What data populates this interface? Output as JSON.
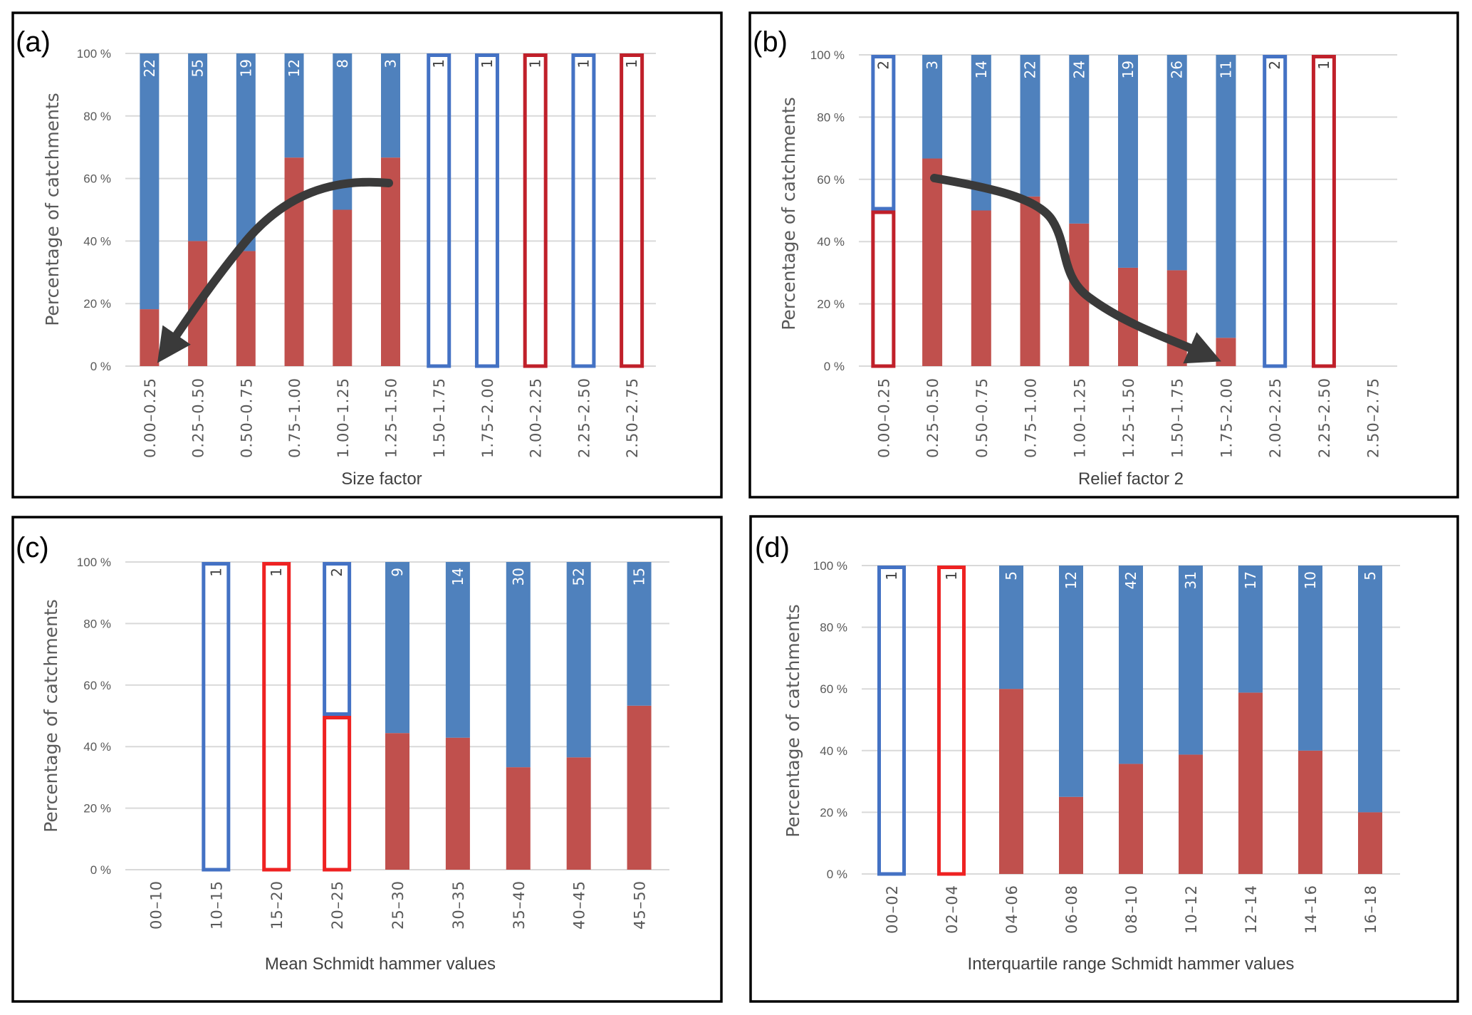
{
  "colors": {
    "upper_solid": "#4F81BD",
    "lower_solid": "#C0504D",
    "outline_blue": "#4472C4",
    "outline_red_dark": "#C0202A",
    "outline_red_bright": "#EE2222",
    "arrow": "#3A3A3A"
  },
  "chart_data": [
    {
      "panel": "(a)",
      "type": "bar",
      "stacked": true,
      "percent": true,
      "title": "",
      "xlabel": "Size factor",
      "ylabel": "Percentage of catchments",
      "ylim": [
        0,
        100
      ],
      "yticks": [
        "0 %",
        "20 %",
        "40 %",
        "60 %",
        "80 %",
        "100 %"
      ],
      "grid": true,
      "categories": [
        "0.00–0.25",
        "0.25–0.50",
        "0.50–0.75",
        "0.75–1.00",
        "1.00–1.25",
        "1.25–1.50",
        "1.50–1.75",
        "1.75–2.00",
        "2.00–2.25",
        "2.25–2.50",
        "2.50–2.75"
      ],
      "counts": [
        22,
        55,
        19,
        12,
        8,
        3,
        1,
        1,
        1,
        1,
        1
      ],
      "series": [
        {
          "name": "lower (red)",
          "values": [
            18.2,
            40.0,
            36.8,
            66.7,
            50.0,
            66.7,
            0,
            0,
            100,
            0,
            100
          ]
        },
        {
          "name": "upper (blue)",
          "values": [
            81.8,
            60.0,
            63.2,
            33.3,
            50.0,
            33.3,
            100,
            100,
            0,
            100,
            0
          ]
        }
      ],
      "outlined": [
        false,
        false,
        false,
        false,
        false,
        false,
        true,
        true,
        true,
        true,
        true
      ],
      "outline_red_style": "dark",
      "annotation": "curved arrow from 1.25–1.50 (~60%) down to 0.00–0.25 (~0%)"
    },
    {
      "panel": "(b)",
      "type": "bar",
      "stacked": true,
      "percent": true,
      "title": "",
      "xlabel": "Relief factor 2",
      "ylabel": "Percentage of catchments",
      "ylim": [
        0,
        100
      ],
      "yticks": [
        "0 %",
        "20 %",
        "40 %",
        "60 %",
        "80 %",
        "100 %"
      ],
      "grid": true,
      "categories": [
        "0.00–0.25",
        "0.25–0.50",
        "0.50–0.75",
        "0.75–1.00",
        "1.00–1.25",
        "1.25–1.50",
        "1.50–1.75",
        "1.75–2.00",
        "2.00–2.25",
        "2.25–2.50",
        "2.50–2.75"
      ],
      "counts": [
        2,
        3,
        14,
        22,
        24,
        19,
        26,
        11,
        2,
        1,
        null
      ],
      "series": [
        {
          "name": "lower (red)",
          "values": [
            50.0,
            66.7,
            50.0,
            54.5,
            45.8,
            31.6,
            30.8,
            9.1,
            0,
            100,
            null
          ]
        },
        {
          "name": "upper (blue)",
          "values": [
            50.0,
            33.3,
            50.0,
            45.5,
            54.2,
            68.4,
            69.2,
            90.9,
            100,
            0,
            null
          ]
        }
      ],
      "outlined": [
        true,
        false,
        false,
        false,
        false,
        false,
        false,
        false,
        true,
        true,
        false
      ],
      "outline_red_style": "dark",
      "annotation": "curved arrow from 0.25–0.50 (~60%) down to 1.75–2.00 (~5%)"
    },
    {
      "panel": "(c)",
      "type": "bar",
      "stacked": true,
      "percent": true,
      "title": "",
      "xlabel": "Mean Schmidt hammer values",
      "ylabel": "Percentage of catchments",
      "ylim": [
        0,
        100
      ],
      "yticks": [
        "0 %",
        "20 %",
        "40 %",
        "60 %",
        "80 %",
        "100 %"
      ],
      "grid": true,
      "categories": [
        "00–10",
        "10–15",
        "15–20",
        "20–25",
        "25–30",
        "30–35",
        "35–40",
        "40–45",
        "45–50"
      ],
      "counts": [
        null,
        1,
        1,
        2,
        9,
        14,
        30,
        52,
        15
      ],
      "series": [
        {
          "name": "lower (red)",
          "values": [
            null,
            0,
            100,
            50.0,
            44.4,
            42.9,
            33.3,
            36.5,
            53.3
          ]
        },
        {
          "name": "upper (blue)",
          "values": [
            null,
            100,
            0,
            50.0,
            55.6,
            57.1,
            66.7,
            63.5,
            46.7
          ]
        }
      ],
      "outlined": [
        false,
        true,
        true,
        true,
        false,
        false,
        false,
        false,
        false
      ],
      "outline_red_style": "bright"
    },
    {
      "panel": "(d)",
      "type": "bar",
      "stacked": true,
      "percent": true,
      "title": "",
      "xlabel": "Interquartile range Schmidt hammer values",
      "ylabel": "Percentage of catchments",
      "ylim": [
        0,
        100
      ],
      "yticks": [
        "0 %",
        "20 %",
        "40 %",
        "60 %",
        "80 %",
        "100 %"
      ],
      "grid": true,
      "categories": [
        "00–02",
        "02–04",
        "04–06",
        "06–08",
        "08–10",
        "10–12",
        "12–14",
        "14–16",
        "16–18"
      ],
      "counts": [
        1,
        1,
        5,
        12,
        42,
        31,
        17,
        10,
        5
      ],
      "series": [
        {
          "name": "lower (red)",
          "values": [
            0,
            100,
            60.0,
            25.0,
            35.7,
            38.7,
            58.8,
            40.0,
            20.0
          ]
        },
        {
          "name": "upper (blue)",
          "values": [
            100,
            0,
            40.0,
            75.0,
            64.3,
            61.3,
            41.2,
            60.0,
            80.0
          ]
        }
      ],
      "outlined": [
        true,
        true,
        false,
        false,
        false,
        false,
        false,
        false,
        false
      ],
      "outline_red_style": "bright"
    }
  ]
}
